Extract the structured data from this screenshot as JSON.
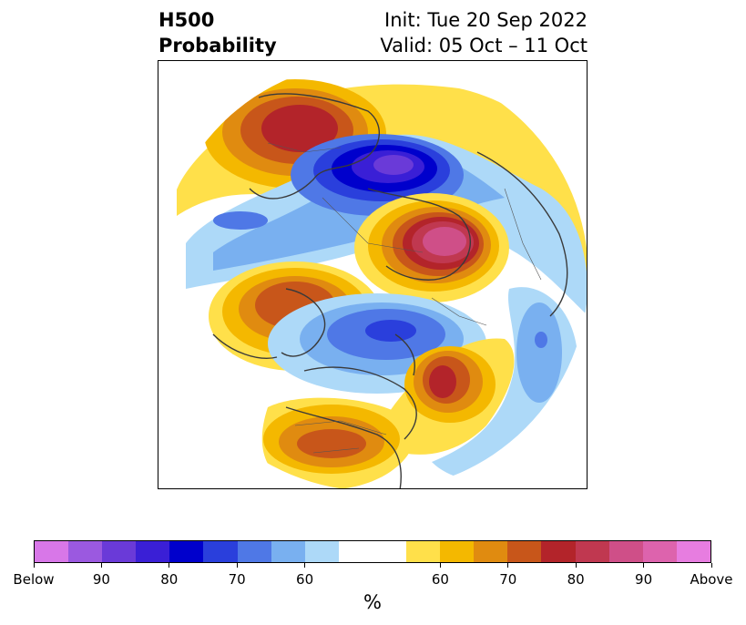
{
  "title": {
    "left_line1": "H500",
    "left_line2": "Probability",
    "right_line1": "Init: Tue 20 Sep 2022",
    "right_line2": "Valid: 05 Oct – 11 Oct"
  },
  "colorbar": {
    "unit": "%",
    "segments": [
      {
        "color": "#d877e8",
        "name": "below-extreme"
      },
      {
        "color": "#9b59e0",
        "name": "below-95"
      },
      {
        "color": "#6a3ad8",
        "name": "below-90"
      },
      {
        "color": "#3a1fd6",
        "name": "below-85"
      },
      {
        "color": "#0000cc",
        "name": "below-80"
      },
      {
        "color": "#2a3fdc",
        "name": "below-75"
      },
      {
        "color": "#4f78e6",
        "name": "below-70"
      },
      {
        "color": "#79b0f0",
        "name": "below-65"
      },
      {
        "color": "#add9f8",
        "name": "below-60"
      },
      {
        "color": "#ffffff",
        "name": "neutral"
      },
      {
        "color": "#ffe04a",
        "name": "above-60"
      },
      {
        "color": "#f4b800",
        "name": "above-65"
      },
      {
        "color": "#e08b10",
        "name": "above-70"
      },
      {
        "color": "#c8561a",
        "name": "above-75"
      },
      {
        "color": "#b3242a",
        "name": "above-80"
      },
      {
        "color": "#c03850",
        "name": "above-85"
      },
      {
        "color": "#cf4f88",
        "name": "above-90"
      },
      {
        "color": "#dd63ad",
        "name": "above-95"
      },
      {
        "color": "#e77de0",
        "name": "above-extreme"
      }
    ],
    "tick_labels": [
      "Below",
      "90",
      "80",
      "70",
      "60",
      "60",
      "70",
      "80",
      "90",
      "Above"
    ]
  },
  "map": {
    "projection": "north-polar-stereographic",
    "anomalies": [
      {
        "name": "north-atlantic-high",
        "type": "above",
        "levels": [
          "#ffe04a",
          "#f4b800",
          "#e08b10",
          "#c8561a",
          "#b3242a"
        ]
      },
      {
        "name": "arctic-low",
        "type": "below",
        "levels": [
          "#add9f8",
          "#79b0f0",
          "#4f78e6",
          "#2a3fdc",
          "#0000cc",
          "#3a1fd6",
          "#6a3ad8"
        ]
      },
      {
        "name": "siberia-high",
        "type": "above",
        "levels": [
          "#ffe04a",
          "#f4b800",
          "#e08b10",
          "#c8561a",
          "#b3242a",
          "#c03850",
          "#cf4f88"
        ]
      },
      {
        "name": "greenland-high",
        "type": "above",
        "levels": [
          "#ffe04a",
          "#f4b800",
          "#e08b10",
          "#c8561a",
          "#b3242a"
        ]
      },
      {
        "name": "canada-low",
        "type": "below",
        "levels": [
          "#add9f8",
          "#79b0f0",
          "#4f78e6",
          "#2a3fdc"
        ]
      },
      {
        "name": "alaska-high",
        "type": "above",
        "levels": [
          "#ffe04a",
          "#f4b800",
          "#e08b10",
          "#c8561a",
          "#b3242a"
        ]
      },
      {
        "name": "conus-high",
        "type": "above",
        "levels": [
          "#ffe04a",
          "#f4b800",
          "#e08b10",
          "#c8561a"
        ]
      },
      {
        "name": "europe-low",
        "type": "below",
        "levels": [
          "#add9f8",
          "#79b0f0",
          "#4f78e6"
        ]
      }
    ]
  }
}
